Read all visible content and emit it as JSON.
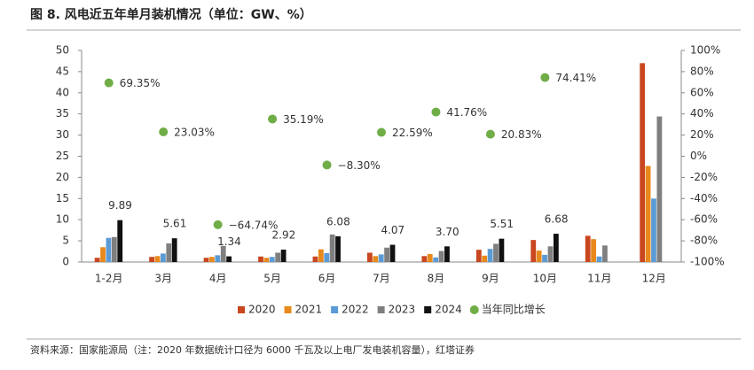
{
  "chart_data": {
    "type": "bar",
    "title": "图 8. 风电近五年单月装机情况（单位：GW、%）",
    "note": "资料来源：国家能源局（注：2020 年数据统计口径为 6000 千瓦及以上电厂发电装机容量），红塔证券",
    "categories": [
      "1-2月",
      "3月",
      "4月",
      "5月",
      "6月",
      "7月",
      "8月",
      "9月",
      "10月",
      "11月",
      "12月"
    ],
    "series": [
      {
        "name": "2020",
        "color": "#c9461e",
        "values": [
          1.0,
          1.2,
          1.0,
          1.3,
          1.3,
          2.2,
          1.4,
          2.9,
          5.2,
          6.2,
          47.0
        ]
      },
      {
        "name": "2021",
        "color": "#e8891c",
        "values": [
          3.5,
          1.4,
          1.2,
          1.0,
          3.0,
          1.4,
          1.9,
          1.5,
          2.7,
          5.4,
          22.7
        ]
      },
      {
        "name": "2022",
        "color": "#5b9bd5",
        "values": [
          5.7,
          2.0,
          1.6,
          1.2,
          2.1,
          1.8,
          1.1,
          3.1,
          1.7,
          1.3,
          15.0
        ]
      },
      {
        "name": "2023",
        "color": "#7f7f7f",
        "values": [
          5.9,
          4.4,
          3.8,
          2.2,
          6.5,
          3.4,
          2.6,
          4.3,
          3.7,
          3.9,
          34.4
        ]
      },
      {
        "name": "2024",
        "color": "#111111",
        "values": [
          9.89,
          5.61,
          1.34,
          2.92,
          6.08,
          4.07,
          3.7,
          5.51,
          6.68,
          null,
          null
        ],
        "value_labels": [
          "9.89",
          "5.61",
          "1.34",
          "2.92",
          "6.08",
          "4.07",
          "3.70",
          "5.51",
          "6.68",
          null,
          null
        ]
      },
      {
        "name": "当年同比增长",
        "type": "scatter",
        "axis": "y2",
        "color": "#70ad47",
        "values": [
          69.35,
          23.03,
          -64.74,
          35.19,
          -8.3,
          22.59,
          41.76,
          20.83,
          74.41,
          null,
          null
        ],
        "value_labels": [
          "69.35%",
          "23.03%",
          "−64.74%",
          "35.19%",
          "−8.30%",
          "22.59%",
          "41.76%",
          "20.83%",
          "74.41%",
          null,
          null
        ]
      }
    ],
    "ylim": [
      0,
      50
    ],
    "yticks": [
      0,
      5,
      10,
      15,
      20,
      25,
      30,
      35,
      40,
      45,
      50
    ],
    "y2lim": [
      -100,
      100
    ],
    "y2ticks": [
      {
        "value": -100,
        "label": "-100%"
      },
      {
        "value": -80,
        "label": "-80%"
      },
      {
        "value": -60,
        "label": "-60%"
      },
      {
        "value": -40,
        "label": "-40%"
      },
      {
        "value": -20,
        "label": "-20%"
      },
      {
        "value": 0,
        "label": "0%"
      },
      {
        "value": 20,
        "label": "20%"
      },
      {
        "value": 40,
        "label": "40%"
      },
      {
        "value": 60,
        "label": "60%"
      },
      {
        "value": 80,
        "label": "80%"
      },
      {
        "value": 100,
        "label": "100%"
      }
    ],
    "grid": false
  }
}
